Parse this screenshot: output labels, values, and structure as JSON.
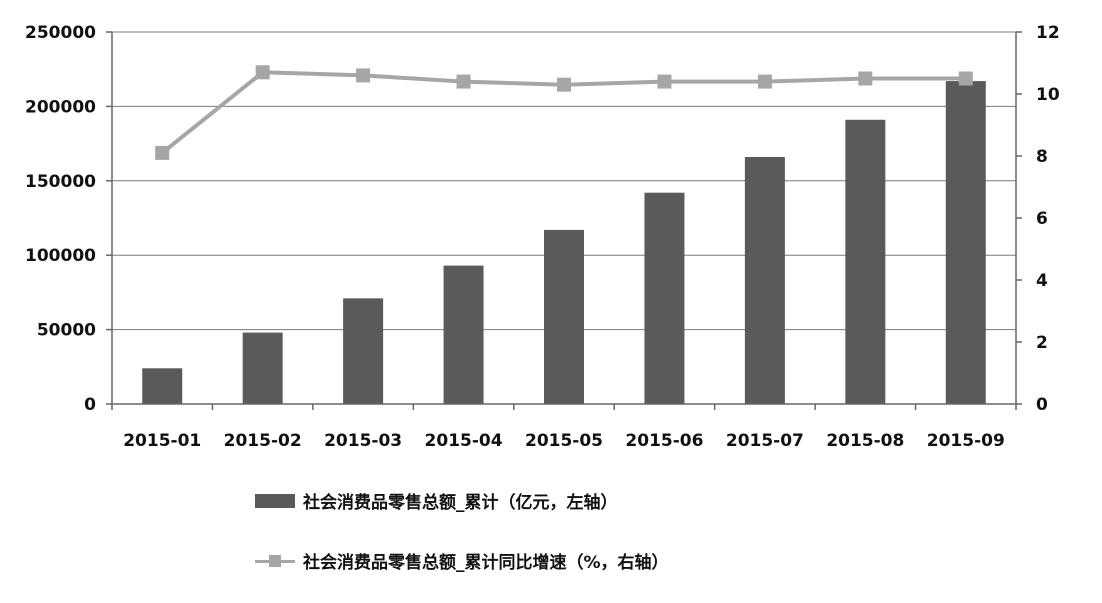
{
  "chart_data": {
    "type": "bar",
    "categories": [
      "2015-01",
      "2015-02",
      "2015-03",
      "2015-04",
      "2015-05",
      "2015-06",
      "2015-07",
      "2015-08",
      "2015-09"
    ],
    "series": [
      {
        "name": "社会消费品零售总额_累计（亿元，左轴）",
        "type": "bar",
        "axis": "left",
        "values": [
          24000,
          48000,
          71000,
          93000,
          117000,
          142000,
          166000,
          191000,
          217000
        ]
      },
      {
        "name": "社会消费品零售总额_累计同比增速（%，右轴）",
        "type": "line",
        "axis": "right",
        "marker": "square",
        "values": [
          8.1,
          10.7,
          10.6,
          10.4,
          10.3,
          10.4,
          10.4,
          10.5,
          10.5
        ]
      }
    ],
    "y_left": {
      "ylim": [
        0,
        250000
      ],
      "ticks": [
        "0",
        "50000",
        "100000",
        "150000",
        "200000",
        "250000"
      ]
    },
    "y_right": {
      "ylim": [
        0,
        12
      ],
      "ticks": [
        "0",
        "2",
        "4",
        "6",
        "8",
        "10",
        "12"
      ]
    },
    "grid": true,
    "legend_position": "bottom",
    "colors": {
      "bar": "#5a5a5a",
      "line": "#a6a6a6",
      "grid": "#7a7a7a",
      "axis": "#666666"
    }
  }
}
